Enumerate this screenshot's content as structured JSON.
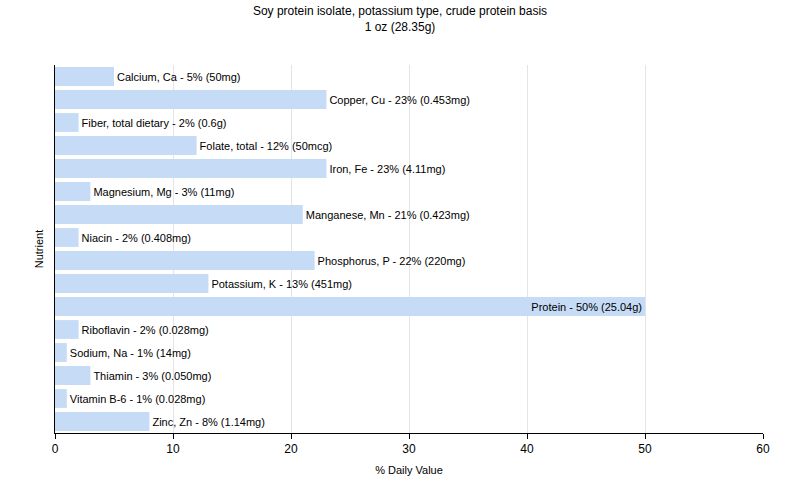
{
  "chart_data": {
    "type": "bar",
    "orientation": "horizontal",
    "title": "Soy protein isolate, potassium type, crude protein basis",
    "subtitle": "1 oz (28.35g)",
    "x_label": "% Daily Value",
    "y_label": "Nutrient",
    "categories": [
      null,
      null,
      null,
      null,
      null,
      null,
      null,
      null,
      null,
      null,
      null,
      null,
      null,
      null,
      null,
      null
    ],
    "values": [
      5,
      23,
      2,
      12,
      23,
      3,
      21,
      2,
      22,
      13,
      50,
      2,
      1,
      3,
      1,
      8
    ],
    "value_labels": [
      "Calcium, Ca - 5% (50mg)",
      "Copper, Cu - 23% (0.453mg)",
      "Fiber, total dietary - 2% (0.6g)",
      "Folate, total - 12% (50mcg)",
      "Iron, Fe - 23% (4.11mg)",
      "Magnesium, Mg - 3% (11mg)",
      "Manganese, Mn - 21% (0.423mg)",
      "Niacin - 2% (0.408mg)",
      "Phosphorus, P - 22% (220mg)",
      "Potassium, K - 13% (451mg)",
      "Protein - 50% (25.04g)",
      "Riboflavin - 2% (0.028mg)",
      "Sodium, Na - 1% (14mg)",
      "Thiamin - 3% (0.050mg)",
      "Vitamin B-6 - 1% (0.028mg)",
      "Zinc, Zn - 8% (1.14mg)"
    ],
    "color": "#c6dcf6",
    "xlim": [
      0,
      60
    ],
    "xticks": [
      0,
      10,
      20,
      30,
      40,
      50,
      60
    ],
    "grid": true,
    "tick_labels": "x"
  }
}
